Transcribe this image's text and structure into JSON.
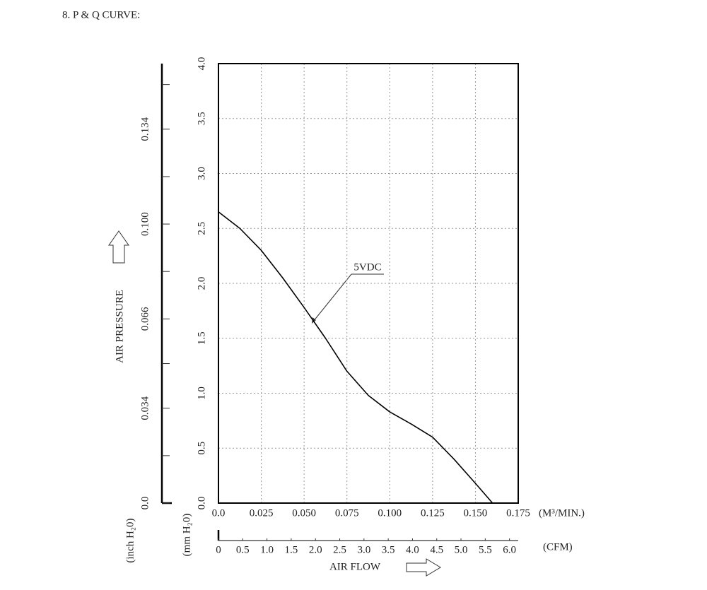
{
  "chart_data": {
    "type": "line",
    "title": "8. P & Q CURVE:",
    "x_label": "AIR FLOW",
    "x_unit": "(M³/MIN.)",
    "y_label": "AIR PRESSURE",
    "y_unit": "(mm H₂0)",
    "x": [
      0,
      0.0125,
      0.025,
      0.0375,
      0.05,
      0.0625,
      0.075,
      0.0875,
      0.1,
      0.1125,
      0.125,
      0.1375,
      0.15,
      0.16
    ],
    "series": [
      {
        "name": "5VDC",
        "color": "#000000",
        "values": [
          2.65,
          2.5,
          2.3,
          2.05,
          1.78,
          1.5,
          1.2,
          0.98,
          0.83,
          0.72,
          0.6,
          0.4,
          0.18,
          0
        ]
      }
    ],
    "xlim": [
      0,
      0.175
    ],
    "ylim": [
      0,
      4
    ],
    "xticks": [
      {
        "value": 0,
        "label": "0.0"
      },
      0.025,
      {
        "value": 0.05,
        "label": "0.050"
      },
      0.075,
      {
        "value": 0.1,
        "label": "0.100"
      },
      0.125,
      {
        "value": 0.15,
        "label": "0.150"
      },
      0.175
    ],
    "yticks": [
      {
        "value": 0,
        "label": "0.0"
      },
      0.5,
      {
        "value": 1,
        "label": "1.0"
      },
      1.5,
      {
        "value": 2,
        "label": "2.0"
      },
      2.5,
      {
        "value": 3,
        "label": "3.0"
      },
      3.5,
      {
        "value": 4,
        "label": "4.0"
      }
    ],
    "grid": true,
    "y_inch_axis": {
      "unit": "(inch H₂0)",
      "lim": [
        0,
        0.1575
      ],
      "ticks": [
        {
          "value": 0,
          "label": "0.0"
        },
        0.034,
        0.066,
        {
          "value": 0.1,
          "label": "0.100"
        },
        0.134
      ],
      "minor_ticks": [
        0.017,
        0.05,
        0.083,
        0.117,
        0.15
      ]
    },
    "x_cfm_axis": {
      "unit": "(CFM)",
      "lim": [
        0,
        6.18
      ],
      "ticks": [
        0,
        0.5,
        {
          "value": 1,
          "label": "1.0"
        },
        1.5,
        {
          "value": 2,
          "label": "2.0"
        },
        2.5,
        {
          "value": 3,
          "label": "3.0"
        },
        3.5,
        {
          "value": 4,
          "label": "4.0"
        },
        4.5,
        {
          "value": 5,
          "label": "5.0"
        },
        5.5,
        {
          "value": 6,
          "label": "6.0"
        }
      ]
    }
  }
}
